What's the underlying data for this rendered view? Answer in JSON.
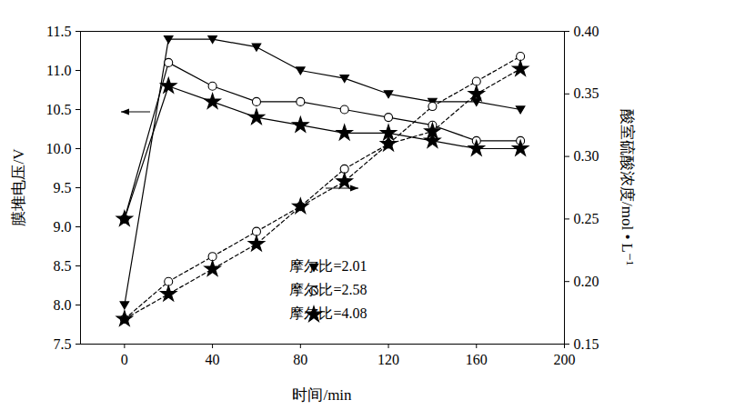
{
  "chart_data": {
    "type": "line",
    "x_label": "时间/min",
    "y_label": "膜堆电压/V",
    "y2_label": "酸室硫酸浓度/mol • L⁻¹",
    "x": [
      0,
      20,
      40,
      60,
      80,
      100,
      120,
      140,
      160,
      180
    ],
    "xlim": [
      -20,
      200
    ],
    "xticks": [
      0,
      40,
      80,
      120,
      160,
      200
    ],
    "ylim": [
      7.5,
      11.5
    ],
    "yticks": [
      7.5,
      {
        "value": 8,
        "label": "8.0"
      },
      8.5,
      {
        "value": 9,
        "label": "9.0"
      },
      9.5,
      {
        "value": 10,
        "label": "10.0"
      },
      10.5,
      {
        "value": 11,
        "label": "11.0"
      },
      11.5
    ],
    "y2lim": [
      0.15,
      0.4
    ],
    "y2ticks": [
      0.15,
      {
        "value": 0.2,
        "label": "0.20"
      },
      0.25,
      {
        "value": 0.3,
        "label": "0.30"
      },
      0.35,
      {
        "value": 0.4,
        "label": "0.40"
      }
    ],
    "legend": "lower center",
    "grid": false,
    "series": [
      {
        "name": "摩尔比=2.01",
        "color": "#000000",
        "marker": "triangle-down",
        "line_style": "solid",
        "values": [
          8.0,
          11.4,
          11.4,
          11.3,
          11.0,
          10.9,
          10.7,
          10.6,
          10.6,
          10.5
        ]
      },
      {
        "name": "摩尔比=2.58",
        "color": "#000000",
        "marker": "circle-open",
        "line_style": "solid",
        "values": [
          9.1,
          11.1,
          10.8,
          10.6,
          10.6,
          10.5,
          10.4,
          10.3,
          10.1,
          10.1
        ]
      },
      {
        "name": "摩尔比=4.08",
        "color": "#000000",
        "marker": "star",
        "line_style": "solid",
        "values": [
          9.1,
          10.8,
          10.6,
          10.4,
          10.3,
          10.2,
          10.2,
          10.1,
          10.0,
          10.0
        ]
      },
      {
        "name": "摩尔比=2.58",
        "color": "#000000",
        "marker": "circle-open",
        "line_style": "dashed",
        "axis": "y2",
        "values": [
          0.17,
          0.2,
          0.22,
          0.24,
          0.26,
          0.29,
          0.31,
          0.34,
          0.36,
          0.38
        ]
      },
      {
        "name": "摩尔比=4.08",
        "color": "#000000",
        "marker": "star",
        "line_style": "dashed",
        "axis": "y2",
        "values": [
          0.17,
          0.19,
          0.21,
          0.23,
          0.26,
          0.28,
          0.31,
          0.32,
          0.35,
          0.37
        ]
      }
    ]
  }
}
